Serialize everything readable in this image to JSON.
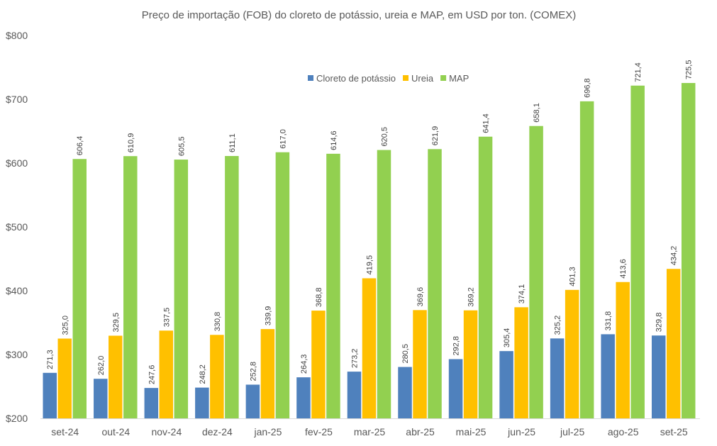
{
  "chart_data": {
    "type": "bar",
    "title": "Preço de importação (FOB) do cloreto de potássio, ureia e MAP, em USD por ton. (COMEX)",
    "xlabel": "",
    "ylabel": "",
    "ylim": [
      200,
      800
    ],
    "yticks": [
      "$200",
      "$300",
      "$400",
      "$500",
      "$600",
      "$700",
      "$800"
    ],
    "ytick_values": [
      200,
      300,
      400,
      500,
      600,
      700,
      800
    ],
    "grid": false,
    "legend_position": "top-center",
    "categories": [
      "set-24",
      "out-24",
      "nov-24",
      "dez-24",
      "jan-25",
      "fev-25",
      "mar-25",
      "abr-25",
      "mai-25",
      "jun-25",
      "jul-25",
      "ago-25",
      "set-25"
    ],
    "series": [
      {
        "name": "Cloreto de potássio",
        "color": "#4f81bd",
        "values": [
          271.3,
          262.0,
          247.6,
          248.2,
          252.8,
          264.3,
          273.2,
          280.5,
          292.8,
          305.4,
          325.2,
          331.8,
          329.8
        ],
        "labels": [
          "271,3",
          "262,0",
          "247,6",
          "248,2",
          "252,8",
          "264,3",
          "273,2",
          "280,5",
          "292,8",
          "305,4",
          "325,2",
          "331,8",
          "329,8"
        ]
      },
      {
        "name": "Ureia",
        "color": "#ffc000",
        "values": [
          325.0,
          329.5,
          337.5,
          330.8,
          339.9,
          368.8,
          419.5,
          369.6,
          369.2,
          374.1,
          401.3,
          413.6,
          434.2
        ],
        "labels": [
          "325,0",
          "329,5",
          "337,5",
          "330,8",
          "339,9",
          "368,8",
          "419,5",
          "369,6",
          "369,2",
          "374,1",
          "401,3",
          "413,6",
          "434,2"
        ]
      },
      {
        "name": "MAP",
        "color": "#92d050",
        "values": [
          606.4,
          610.9,
          605.5,
          611.1,
          617.0,
          614.6,
          620.5,
          621.9,
          641.4,
          658.1,
          696.8,
          721.4,
          725.5
        ],
        "labels": [
          "606,4",
          "610,9",
          "605,5",
          "611,1",
          "617,0",
          "614,6",
          "620,5",
          "621,9",
          "641,4",
          "658,1",
          "696,8",
          "721,4",
          "725,5"
        ]
      }
    ]
  }
}
